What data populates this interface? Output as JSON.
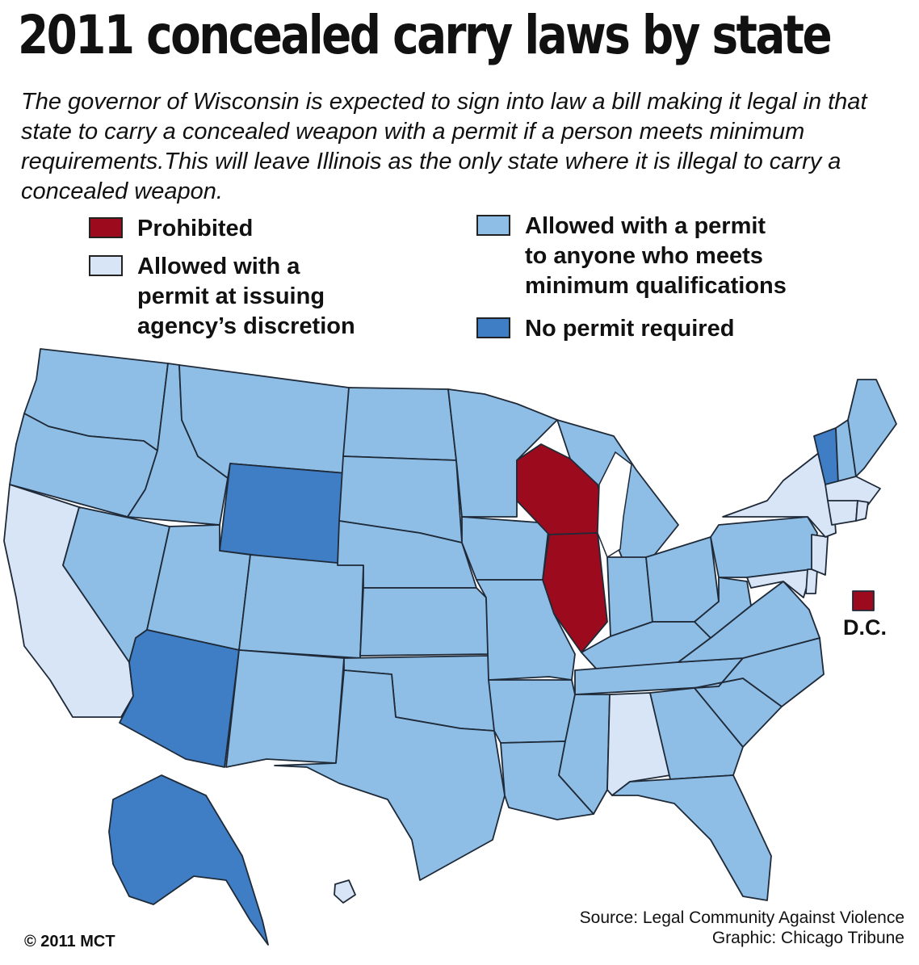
{
  "title": "2011 concealed carry laws by state",
  "subtitle": "The governor of Wisconsin is expected to sign into law a bill making it legal in that state to carry a concealed weapon with a permit if a person meets minimum requirements.This will leave Illinois as the only state where it is illegal to carry a concealed weapon.",
  "legend": {
    "prohibited": {
      "label": "Prohibited",
      "color": "#9c0a1e"
    },
    "discretion": {
      "label": "Allowed with a\npermit at issuing\nagency’s discretion",
      "color": "#d8e5f7"
    },
    "shall_issue": {
      "label": "Allowed with a permit\nto anyone who meets\nminimum qualifications",
      "color": "#8ebde6"
    },
    "no_permit": {
      "label": "No permit required",
      "color": "#3f7ec5"
    }
  },
  "map": {
    "border_color": "#1f2a38",
    "prohibited_states": [
      "Wisconsin",
      "Illinois",
      "D.C."
    ],
    "discretion_states": [
      "California",
      "New York",
      "New Jersey",
      "Maryland",
      "Delaware",
      "Massachusetts",
      "Connecticut",
      "Rhode Island",
      "Alabama",
      "Hawaii"
    ],
    "no_permit_states": [
      "Alaska",
      "Arizona",
      "Wyoming",
      "Vermont"
    ],
    "dc_label": "D.C."
  },
  "source": {
    "line1": "Source: Legal Community Against Violence",
    "line2": "Graphic: Chicago Tribune"
  },
  "copyright": "© 2011 MCT"
}
